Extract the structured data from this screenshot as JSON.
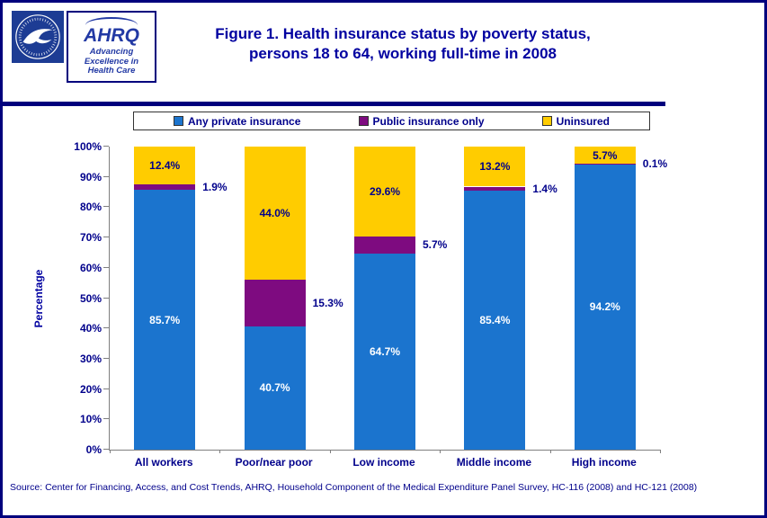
{
  "header": {
    "title_line1": "Figure 1. Health insurance status by poverty status,",
    "title_line2": "persons 18 to 64, working full-time in 2008",
    "logo": {
      "name": "AHRQ",
      "tagline": "Advancing Excellence in Health Care"
    }
  },
  "colors": {
    "page_border": "#00007D",
    "title_text": "#0000A0",
    "axis_text": "#00008B"
  },
  "chart_data": {
    "type": "bar",
    "stacked": true,
    "title": "Figure 1. Health insurance status by poverty status, persons 18 to 64, working full-time in 2008",
    "categories": [
      "All workers",
      "Poor/near poor",
      "Low income",
      "Middle income",
      "High income"
    ],
    "series": [
      {
        "name": "Any private insurance",
        "color": "#1B74CE",
        "values": [
          85.7,
          40.7,
          64.7,
          85.4,
          94.2
        ],
        "label_position": "inside",
        "label_color": "#FFFFFF"
      },
      {
        "name": "Public insurance only",
        "color": "#7E0B80",
        "values": [
          1.9,
          15.3,
          5.7,
          1.4,
          0.1
        ],
        "label_position": "right",
        "label_color": "#00008B"
      },
      {
        "name": "Uninsured",
        "color": "#FFCC00",
        "values": [
          12.4,
          44.0,
          29.6,
          13.2,
          5.7
        ],
        "label_position": "inside",
        "label_color": "#00008B"
      }
    ],
    "ylabel": "Percentage",
    "xlabel": "",
    "ylim": [
      0,
      100
    ],
    "ytick_step": 10,
    "ytick_suffix": "%",
    "grid": false,
    "legend_position": "top"
  },
  "source": "Source: Center for Financing, Access, and Cost Trends, AHRQ, Household Component of the Medical Expenditure Panel Survey, HC-116 (2008) and HC-121 (2008)"
}
